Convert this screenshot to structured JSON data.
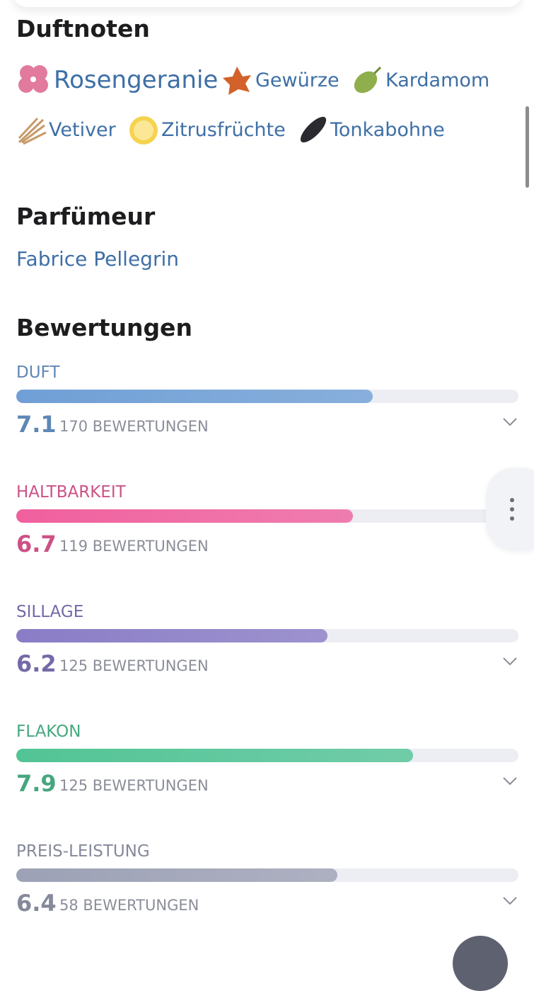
{
  "notes": {
    "title": "Duftnoten",
    "items": [
      "Rosengeranie",
      "Gewürze",
      "Kardamom",
      "Vetiver",
      "Zitrusfrüchte",
      "Tonkabohne"
    ]
  },
  "perfumer": {
    "title": "Parfümeur",
    "name": "Fabrice Pellegrin"
  },
  "ratings": {
    "title": "Bewertungen",
    "range": [
      0,
      10
    ],
    "items": [
      {
        "label": "DUFT",
        "value": 7.1,
        "count": "170 BEWERTUNGEN",
        "color": "#6f9fd6"
      },
      {
        "label": "HALTBARKEIT",
        "value": 6.7,
        "count": "119 BEWERTUNGEN",
        "color": "#f0609e"
      },
      {
        "label": "SILLAGE",
        "value": 6.2,
        "count": "125 BEWERTUNGEN",
        "color": "#8a7cc6"
      },
      {
        "label": "FLAKON",
        "value": 7.9,
        "count": "125 BEWERTUNGEN",
        "color": "#52c495"
      },
      {
        "label": "PREIS-LEISTUNG",
        "value": 6.4,
        "count": "58 BEWERTUNGEN",
        "color": "#9da1b5"
      }
    ]
  }
}
